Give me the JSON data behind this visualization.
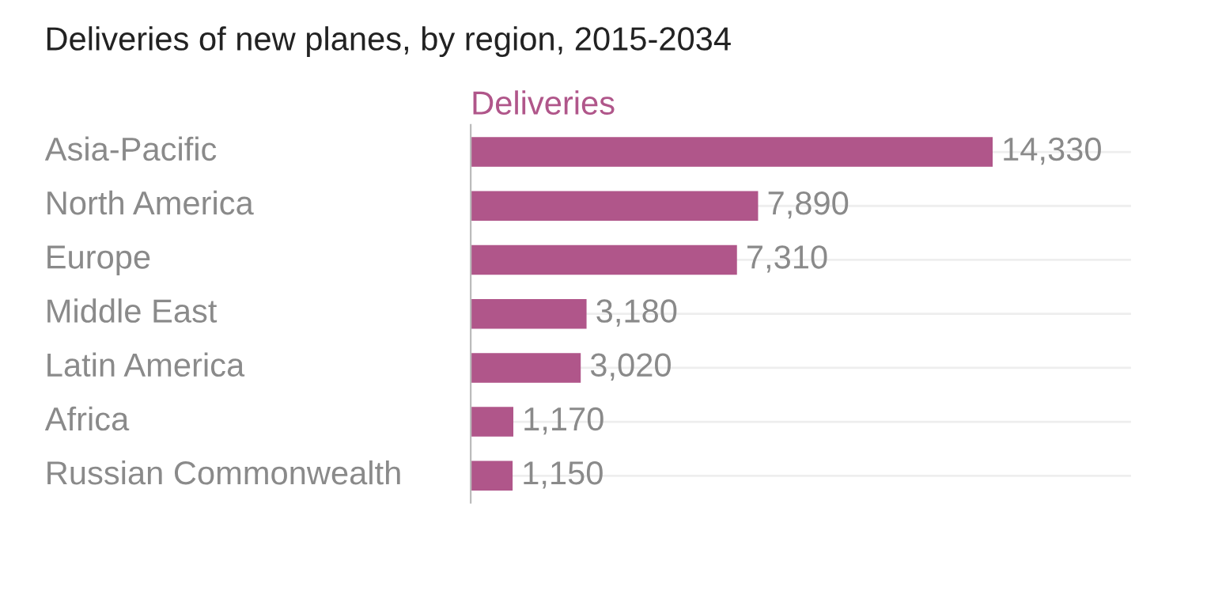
{
  "chart_data": {
    "type": "bar",
    "orientation": "horizontal",
    "title": "Deliveries of new planes, by region, 2015-2034",
    "categories": [
      "Asia-Pacific",
      "North America",
      "Europe",
      "Middle East",
      "Latin America",
      "Africa",
      "Russian Commonwealth"
    ],
    "series": [
      {
        "name": "Deliveries",
        "color": "#b0568a",
        "values": [
          14330,
          7890,
          7310,
          3180,
          3020,
          1170,
          1150
        ],
        "value_labels": [
          "14,330",
          "7,890",
          "7,310",
          "3,180",
          "3,020",
          "1,170",
          "1,150"
        ]
      }
    ],
    "grid": "y"
  }
}
